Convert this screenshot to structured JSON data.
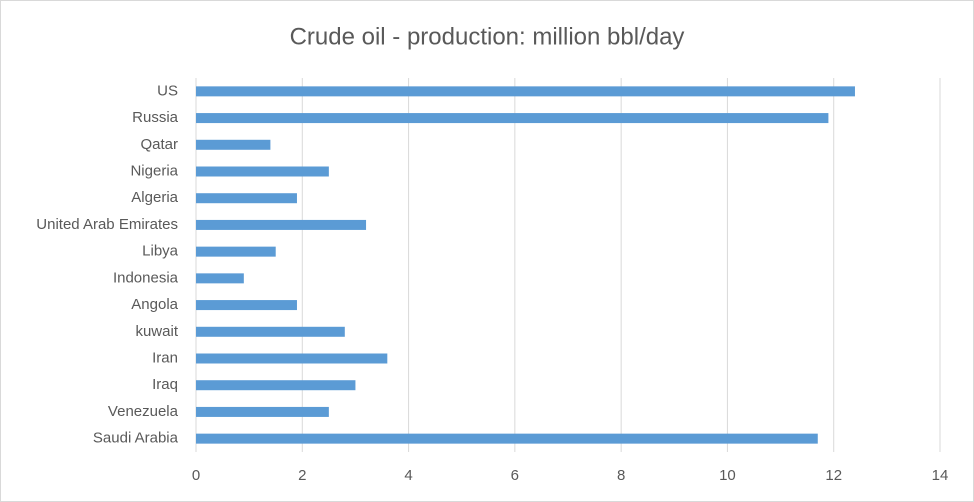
{
  "chart_data": {
    "type": "bar",
    "orientation": "horizontal",
    "title": "Crude oil - production: million bbl/day",
    "categories": [
      "US",
      "Russia",
      "Qatar",
      "Nigeria",
      "Algeria",
      "United Arab Emirates",
      "Libya",
      "Indonesia",
      "Angola",
      "kuwait",
      "Iran",
      "Iraq",
      "Venezuela",
      "Saudi Arabia"
    ],
    "values": [
      12.4,
      11.9,
      1.4,
      2.5,
      1.9,
      3.2,
      1.5,
      0.9,
      1.9,
      2.8,
      3.6,
      3.0,
      2.5,
      11.7
    ],
    "color": "#5b9bd5",
    "xlim": [
      0,
      14
    ],
    "xticks": [
      0,
      2,
      4,
      6,
      8,
      10,
      12,
      14
    ],
    "grid": true
  }
}
